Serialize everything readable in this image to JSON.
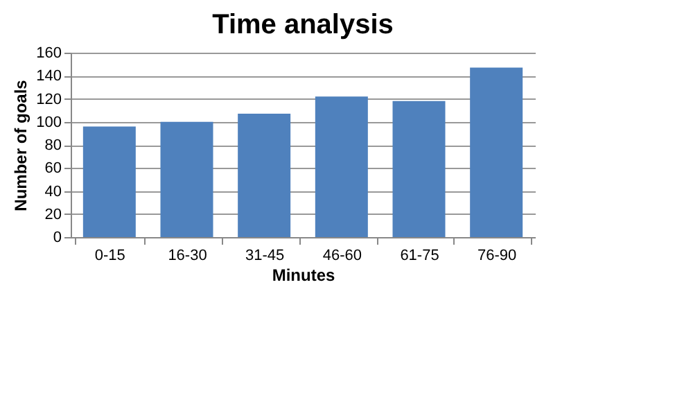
{
  "chart_data": {
    "type": "bar",
    "title": "Time analysis",
    "xlabel": "Minutes",
    "ylabel": "Number of goals",
    "categories": [
      "0-15",
      "16-30",
      "31-45",
      "46-60",
      "61-75",
      "76-90"
    ],
    "series": [
      {
        "color": "#4f81bd",
        "values": [
          96,
          100,
          107,
          122,
          118,
          147
        ]
      }
    ],
    "ylim": [
      0,
      160
    ],
    "yticks": [
      0,
      20,
      40,
      60,
      80,
      100,
      120,
      140,
      160
    ],
    "grid": "y",
    "legend": false
  }
}
